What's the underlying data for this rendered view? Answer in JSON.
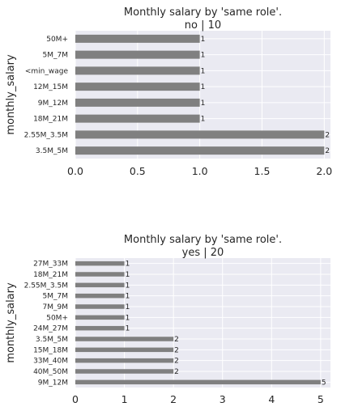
{
  "chart_data": [
    {
      "type": "bar",
      "orientation": "horizontal",
      "title": "Monthly salary by 'same role'.",
      "subtitle": "no | 10",
      "ylabel": "monthly_salary",
      "xlabel": "",
      "categories": [
        "50M+",
        "5M_7M",
        "<min_wage",
        "12M_15M",
        "9M_12M",
        "18M_21M",
        "2.55M_3.5M",
        "3.5M_5M"
      ],
      "values": [
        1,
        1,
        1,
        1,
        1,
        1,
        2,
        2
      ],
      "data_labels": [
        "1",
        "1",
        "1",
        "1",
        "1",
        "1",
        "2",
        "2"
      ],
      "xlim": [
        0,
        2.05
      ],
      "xticks": [
        0,
        0.5,
        1.0,
        1.5,
        2.0
      ],
      "xtick_labels": [
        "0.0",
        "0.5",
        "1.0",
        "1.5",
        "2.0"
      ],
      "grid": true,
      "bar_color": "#808080",
      "background": "#eaeaf2"
    },
    {
      "type": "bar",
      "orientation": "horizontal",
      "title": "Monthly salary by 'same role'.",
      "subtitle": "yes | 20",
      "ylabel": "monthly_salary",
      "xlabel": "",
      "categories": [
        "27M_33M",
        "18M_21M",
        "2.55M_3.5M",
        "5M_7M",
        "7M_9M",
        "50M+",
        "24M_27M",
        "3.5M_5M",
        "15M_18M",
        "33M_40M",
        "40M_50M",
        "9M_12M"
      ],
      "values": [
        1,
        1,
        1,
        1,
        1,
        1,
        1,
        2,
        2,
        2,
        2,
        5
      ],
      "data_labels": [
        "1",
        "1",
        "1",
        "1",
        "1",
        "1",
        "1",
        "2",
        "2",
        "2",
        "2",
        "5"
      ],
      "xlim": [
        0,
        5.2
      ],
      "xticks": [
        0,
        1,
        2,
        3,
        4,
        5
      ],
      "xtick_labels": [
        "0",
        "1",
        "2",
        "3",
        "4",
        "5"
      ],
      "grid": true,
      "bar_color": "#808080",
      "background": "#eaeaf2"
    }
  ]
}
